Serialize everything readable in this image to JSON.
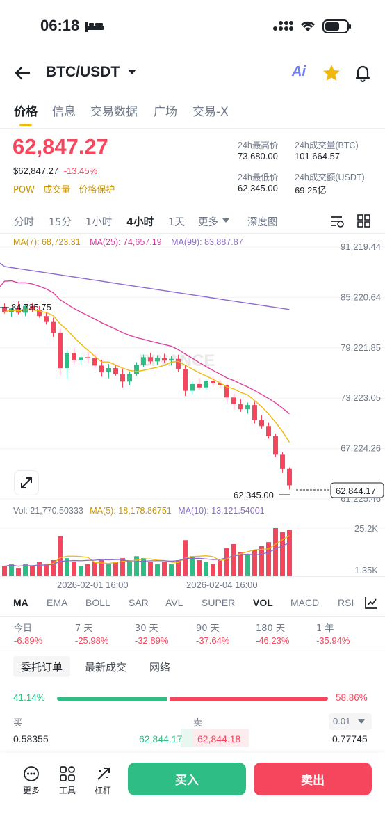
{
  "status_bar": {
    "time": "06:18"
  },
  "header": {
    "pair": "BTC/USDT",
    "ai_label": "Ai"
  },
  "tabs": [
    "价格",
    "信息",
    "交易数据",
    "广场",
    "交易-X"
  ],
  "price": {
    "last": "62,847.27",
    "usd": "$62,847.27",
    "change": "-13.45%",
    "tags": [
      "POW",
      "成交量",
      "价格保护"
    ]
  },
  "stats": {
    "high_label": "24h最高价",
    "high": "73,680.00",
    "vol_btc_label": "24h成交量(BTC)",
    "vol_btc": "101,664.57",
    "low_label": "24h最低价",
    "low": "62,345.00",
    "vol_usdt_label": "24h成交额(USDT)",
    "vol_usdt": "69.25亿"
  },
  "timeframes": [
    "分时",
    "15分",
    "1小时",
    "4小时",
    "1天",
    "更多",
    "深度图"
  ],
  "active_timeframe": "4小时",
  "ma_legend": {
    "ma7": "MA(7): 68,723.31",
    "ma25": "MA(25): 74,657.19",
    "ma99": "MA(99): 83,887.87"
  },
  "colors": {
    "up": "#2ebd85",
    "down": "#f6465d",
    "ma7": "#f0b90b",
    "ma25": "#e040a0",
    "ma99": "#8e6bd1",
    "accent": "#f0b90b"
  },
  "chart_data": {
    "type": "candlestick",
    "price_axis_ticks": [
      "91,219.44",
      "85,220.64",
      "79,221.85",
      "73,223.05",
      "67,224.26",
      "61,225.46"
    ],
    "high_marker": "84,735.75",
    "low_marker": "62,345.00",
    "current_price": "62,844.17",
    "x_tick_labels": [
      "2026-02-01 16:00",
      "2026-02-04 16:00"
    ],
    "volume_legend": {
      "vol": "Vol: 21,770.50333",
      "ma5": "MA(5): 18,178.86751",
      "ma10": "MA(10): 13,121.54001"
    },
    "volume_axis_ticks": [
      "25.2K",
      "1.35K"
    ],
    "watermark": "BINANCE",
    "candles": [
      [
        84100,
        84500,
        83300,
        83500
      ],
      [
        83500,
        84000,
        82900,
        83900
      ],
      [
        83900,
        84735.75,
        83200,
        83400
      ],
      [
        83400,
        84300,
        83000,
        84200
      ],
      [
        84200,
        84500,
        83500,
        83700
      ],
      [
        83700,
        84200,
        82800,
        83000
      ],
      [
        83000,
        83500,
        82000,
        82300
      ],
      [
        82300,
        82800,
        80500,
        81000
      ],
      [
        81000,
        81500,
        76000,
        76800
      ],
      [
        76800,
        79000,
        75500,
        78600
      ],
      [
        78600,
        79200,
        77300,
        77800
      ],
      [
        77800,
        78300,
        77200,
        78100
      ],
      [
        78100,
        78700,
        77400,
        78000
      ],
      [
        78000,
        78500,
        76800,
        77100
      ],
      [
        77100,
        77800,
        75800,
        76300
      ],
      [
        76300,
        77300,
        75600,
        76800
      ],
      [
        76800,
        77200,
        75900,
        76100
      ],
      [
        76100,
        76700,
        74500,
        75200
      ],
      [
        75200,
        76400,
        74800,
        76100
      ],
      [
        76100,
        77500,
        75900,
        77200
      ],
      [
        77200,
        78400,
        76900,
        78100
      ],
      [
        78100,
        78600,
        77300,
        77600
      ],
      [
        77600,
        78300,
        77200,
        78000
      ],
      [
        78000,
        78500,
        77400,
        77700
      ],
      [
        77700,
        78200,
        77100,
        77900
      ],
      [
        77900,
        78400,
        76400,
        76700
      ],
      [
        76700,
        77200,
        73500,
        74100
      ],
      [
        74100,
        75200,
        73700,
        74900
      ],
      [
        74900,
        75600,
        74300,
        74500
      ],
      [
        74500,
        75500,
        74100,
        75300
      ],
      [
        75300,
        75800,
        74800,
        75000
      ],
      [
        75000,
        75400,
        74500,
        74800
      ],
      [
        74800,
        75000,
        72800,
        73300
      ],
      [
        73300,
        73800,
        72000,
        72500
      ],
      [
        72500,
        73100,
        71600,
        71900
      ],
      [
        71900,
        72700,
        71400,
        72400
      ],
      [
        72400,
        72800,
        70200,
        70600
      ],
      [
        70600,
        71200,
        69600,
        69900
      ],
      [
        69900,
        70300,
        68400,
        68700
      ],
      [
        68700,
        69000,
        66200,
        66500
      ],
      [
        66500,
        66800,
        64300,
        64800
      ],
      [
        64800,
        65000,
        62345,
        62844.17
      ]
    ],
    "volumes": [
      5,
      6,
      4,
      6,
      5,
      7,
      6,
      8,
      20,
      9,
      7,
      5,
      6,
      7,
      8,
      6,
      7,
      9,
      8,
      10,
      9,
      7,
      6,
      7,
      6,
      8,
      18,
      10,
      8,
      7,
      6,
      8,
      14,
      16,
      12,
      11,
      13,
      15,
      17,
      24,
      22,
      23
    ]
  },
  "indicators": [
    "MA",
    "EMA",
    "BOLL",
    "SAR",
    "AVL",
    "SUPER",
    "VOL",
    "MACD",
    "RSI"
  ],
  "performance": {
    "labels": [
      "今日",
      "7 天",
      "30 天",
      "90 天",
      "180 天",
      "1 年"
    ],
    "values": [
      "-6.89%",
      "-25.98%",
      "-32.89%",
      "-37.64%",
      "-46.23%",
      "-35.94%"
    ]
  },
  "orderbook_tabs": [
    "委托订单",
    "最新成交",
    "网络"
  ],
  "ratio": {
    "buy": "41.14%",
    "sell": "58.86%",
    "buy_fraction": 0.4114
  },
  "orderbook": {
    "buy_label": "买",
    "sell_label": "卖",
    "precision": "0.01",
    "row1": {
      "bid_qty": "0.58355",
      "bid_price": "62,844.17",
      "ask_price": "62,844.18",
      "ask_qty": "0.77745"
    }
  },
  "bottom_bar": {
    "more": "更多",
    "tools": "工具",
    "leverage": "杠杆",
    "buy": "买入",
    "sell": "卖出"
  }
}
